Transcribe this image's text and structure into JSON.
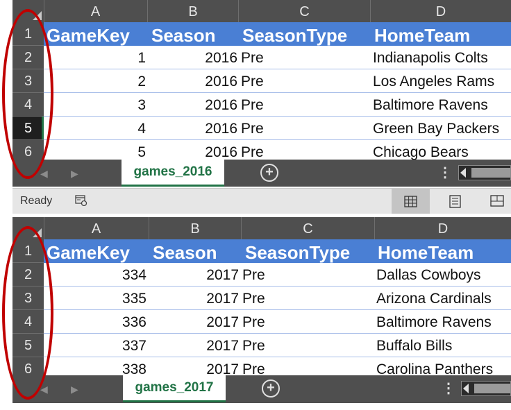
{
  "columns": [
    "A",
    "B",
    "C",
    "D"
  ],
  "row_numbers": [
    "1",
    "2",
    "3",
    "4",
    "5",
    "6"
  ],
  "header_fields": [
    "GameKey",
    "Season",
    "SeasonType",
    "HomeTeam"
  ],
  "top": {
    "sheet_tab": "games_2016",
    "rows": [
      {
        "gamekey": "1",
        "season": "2016",
        "type": "Pre",
        "home": "Indianapolis Colts"
      },
      {
        "gamekey": "2",
        "season": "2016",
        "type": "Pre",
        "home": "Los Angeles Rams"
      },
      {
        "gamekey": "3",
        "season": "2016",
        "type": "Pre",
        "home": "Baltimore Ravens"
      },
      {
        "gamekey": "4",
        "season": "2016",
        "type": "Pre",
        "home": "Green Bay Packers"
      },
      {
        "gamekey": "5",
        "season": "2016",
        "type": "Pre",
        "home": "Chicago Bears"
      }
    ],
    "status": "Ready",
    "selected_row": "5"
  },
  "bottom": {
    "sheet_tab": "games_2017",
    "rows": [
      {
        "gamekey": "334",
        "season": "2017",
        "type": "Pre",
        "home": "Dallas Cowboys"
      },
      {
        "gamekey": "335",
        "season": "2017",
        "type": "Pre",
        "home": "Arizona Cardinals"
      },
      {
        "gamekey": "336",
        "season": "2017",
        "type": "Pre",
        "home": "Baltimore Ravens"
      },
      {
        "gamekey": "337",
        "season": "2017",
        "type": "Pre",
        "home": "Buffalo Bills"
      },
      {
        "gamekey": "338",
        "season": "2017",
        "type": "Pre",
        "home": "Carolina Panthers"
      }
    ]
  },
  "glyphs": {
    "prev": "◀",
    "next": "▶",
    "add": "+",
    "more": "⋮"
  },
  "colors": {
    "header_blue": "#4a7fd4",
    "excel_green": "#217346",
    "annotation_red": "#c00000",
    "chrome_gray": "#4f4f4f"
  }
}
